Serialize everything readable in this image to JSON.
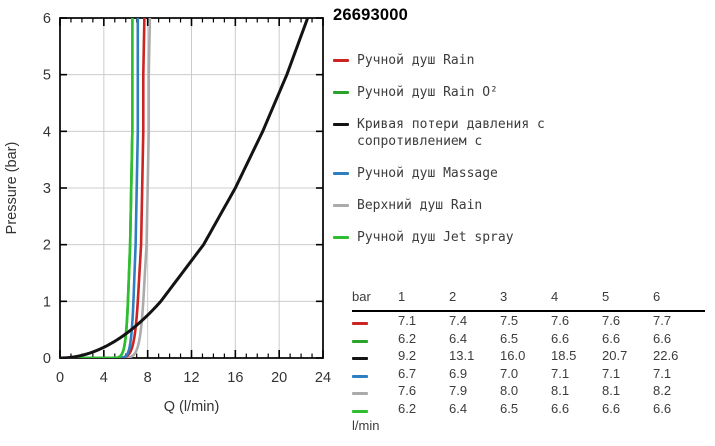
{
  "title": "26693000",
  "table": {
    "corner_label": "bar",
    "pressure_columns": [
      "1",
      "2",
      "3",
      "4",
      "5",
      "6"
    ],
    "unit_label": "l/min"
  },
  "chart_data": {
    "type": "line",
    "title": "26693000",
    "xlabel": "Q (l/min)",
    "ylabel": "Pressure (bar)",
    "xlim": [
      0,
      24
    ],
    "ylim": [
      0,
      6
    ],
    "x_major_ticks": [
      0,
      4,
      8,
      12,
      16,
      20,
      24
    ],
    "x_minor_step": 1,
    "y_major_ticks": [
      0,
      1,
      2,
      3,
      4,
      5,
      6
    ],
    "grid": true,
    "legend_position": "right",
    "pressures_bar": [
      1,
      2,
      3,
      4,
      5,
      6
    ],
    "flow_unit": "l/min",
    "series": [
      {
        "name": "Ручной душ Rain",
        "name_lines": [
          "Ручной душ Rain"
        ],
        "color": "#cc2323",
        "curve": "valve",
        "flow_at_bar": [
          7.1,
          7.4,
          7.5,
          7.6,
          7.6,
          7.7
        ]
      },
      {
        "name": "Ручной душ Rain O²",
        "name_lines": [
          "Ручной душ Rain O²"
        ],
        "color": "#29a329",
        "curve": "valve",
        "flow_at_bar": [
          6.2,
          6.4,
          6.5,
          6.6,
          6.6,
          6.6
        ]
      },
      {
        "name": "Кривая потери давления с сопротивлением с",
        "name_lines": [
          "Кривая потери давления с",
          "сопротивлением с"
        ],
        "color": "#131313",
        "curve": "quadratic",
        "flow_at_bar": [
          9.2,
          13.1,
          16.0,
          18.5,
          20.7,
          22.6
        ]
      },
      {
        "name": "Ручной душ Massage",
        "name_lines": [
          "Ручной душ Massage"
        ],
        "color": "#2e7fc2",
        "curve": "valve",
        "flow_at_bar": [
          6.7,
          6.9,
          7.0,
          7.1,
          7.1,
          7.1
        ]
      },
      {
        "name": "Верхний душ Rain",
        "name_lines": [
          "Верхний душ Rain"
        ],
        "color": "#ababab",
        "curve": "valve",
        "flow_at_bar": [
          7.6,
          7.9,
          8.0,
          8.1,
          8.1,
          8.2
        ]
      },
      {
        "name": "Ручной душ Jet spray",
        "name_lines": [
          "Ручной душ Jet spray"
        ],
        "color": "#2fbe2f",
        "curve": "valve",
        "flow_at_bar": [
          6.2,
          6.4,
          6.5,
          6.6,
          6.6,
          6.6
        ]
      }
    ]
  }
}
